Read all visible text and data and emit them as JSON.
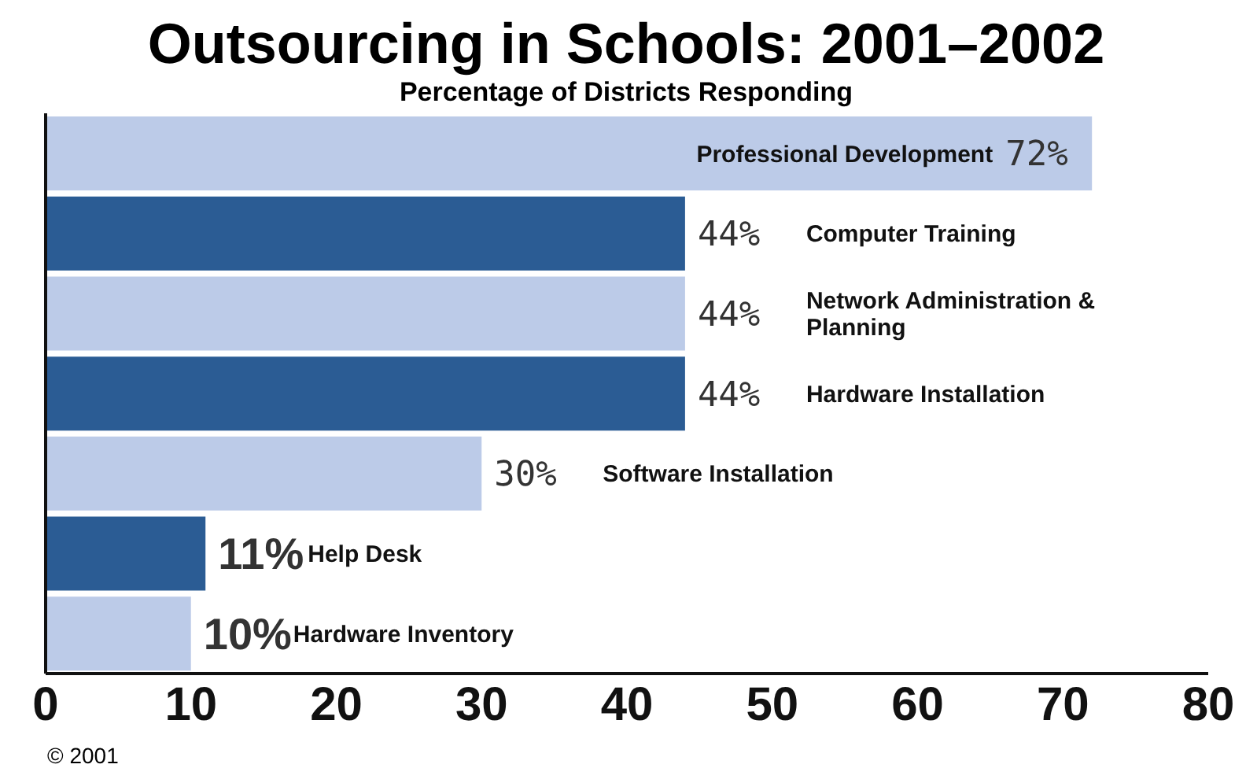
{
  "chart_data": {
    "type": "bar",
    "orientation": "horizontal",
    "title": "Outsourcing in Schools: 2001–2002",
    "subtitle": "Percentage of Districts Responding",
    "categories": [
      "Professional Development",
      "Computer Training",
      "Network Administration & Planning",
      "Hardware Installation",
      "Software Installation",
      "Help Desk",
      "Hardware Inventory"
    ],
    "values": [
      72,
      44,
      44,
      44,
      30,
      11,
      10
    ],
    "colors": [
      "#bccbe8",
      "#2b5c94",
      "#bccbe8",
      "#2b5c94",
      "#bccbe8",
      "#2b5c94",
      "#bccbe8"
    ],
    "value_labels": [
      "72%",
      "44%",
      "44%",
      "44%",
      "30%",
      "11%",
      "10%"
    ],
    "xlim": [
      0,
      80
    ],
    "xticks": [
      0,
      10,
      20,
      30,
      40,
      50,
      60,
      70,
      80
    ],
    "tick_labels": "x",
    "grid": false,
    "annotations": [
      "© 2001"
    ]
  }
}
